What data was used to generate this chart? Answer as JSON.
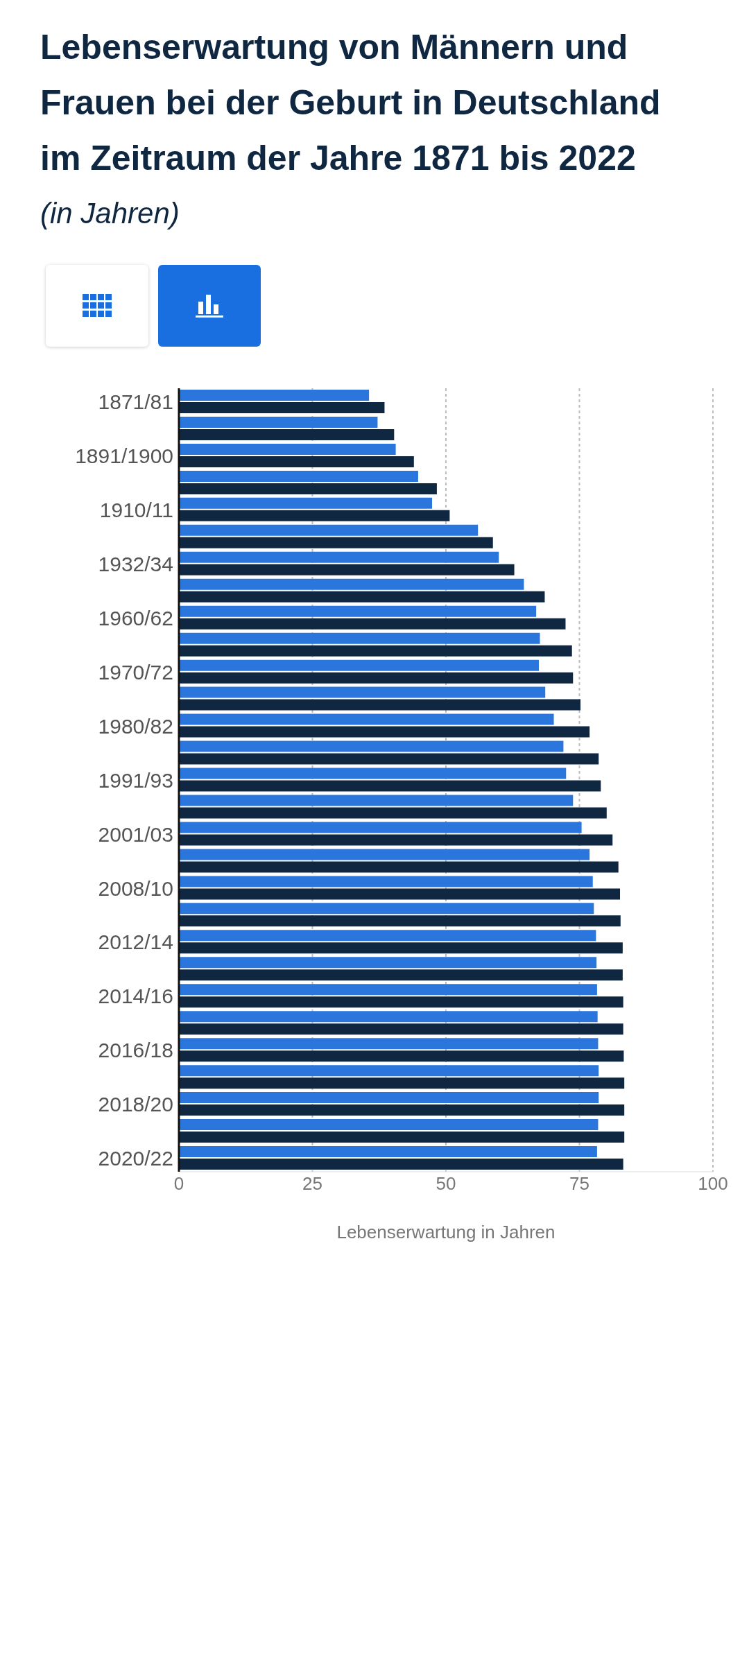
{
  "chart_data": {
    "type": "bar",
    "orientation": "horizontal",
    "title": "Lebenserwartung von Männern und Frauen bei der Geburt in Deutschland im Zeitraum der Jahre 1871 bis 2022",
    "subtitle": "(in Jahren)",
    "xlabel": "Lebenserwartung in Jahren",
    "categories": [
      "1871/81",
      null,
      "1891/1900",
      null,
      "1910/11",
      null,
      "1932/34",
      null,
      "1960/62",
      null,
      "1970/72",
      null,
      "1980/82",
      null,
      "1991/93",
      null,
      "2001/03",
      null,
      "2008/10",
      null,
      "2012/14",
      null,
      "2014/16",
      null,
      "2016/18",
      null,
      "2018/20",
      null,
      "2020/22"
    ],
    "series": [
      {
        "color": "#2a76dd",
        "values": [
          35.6,
          37.2,
          40.6,
          44.8,
          47.4,
          56.0,
          59.9,
          64.6,
          66.9,
          67.6,
          67.4,
          68.6,
          70.2,
          72.0,
          72.5,
          73.8,
          75.4,
          76.9,
          77.5,
          77.7,
          78.1,
          78.2,
          78.3,
          78.4,
          78.5,
          78.6,
          78.6,
          78.5,
          78.3
        ]
      },
      {
        "color": "#0f2740",
        "values": [
          38.5,
          40.3,
          44.0,
          48.3,
          50.7,
          58.8,
          62.8,
          68.5,
          72.4,
          73.6,
          73.8,
          75.2,
          76.9,
          78.6,
          79.0,
          80.1,
          81.2,
          82.3,
          82.6,
          82.7,
          83.1,
          83.1,
          83.2,
          83.2,
          83.3,
          83.4,
          83.4,
          83.4,
          83.2
        ]
      }
    ],
    "xlim": [
      0,
      100
    ],
    "xticks": [
      0,
      25,
      50,
      75,
      100
    ],
    "grid": "x",
    "legend": false
  }
}
